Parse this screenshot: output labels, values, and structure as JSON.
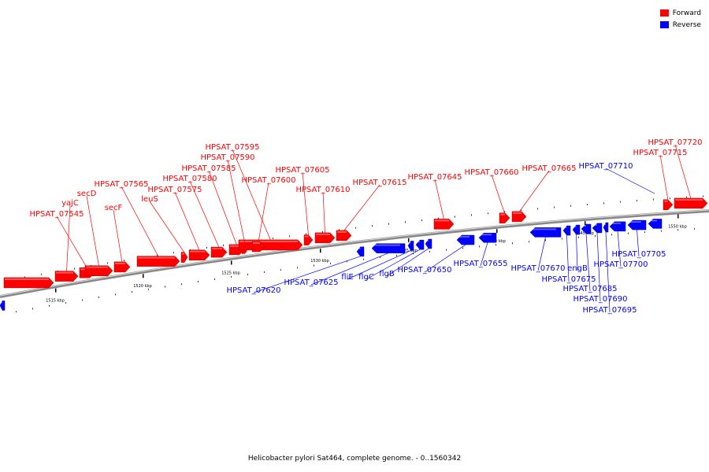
{
  "legend": {
    "forward": {
      "label": "Forward",
      "color": "#ff0000"
    },
    "reverse": {
      "label": "Reverse",
      "color": "#0000ff"
    }
  },
  "caption": "Helicobacter pylori Sat464, complete genome. - 0..1560342",
  "axis_ticks": [
    "1515 kbp",
    "1520 kbp",
    "1525 kbp",
    "1530 kbp",
    "1535 kbp",
    "1540 kbp",
    "1545 kbp",
    "1550 kbp"
  ],
  "genes_forward": [
    {
      "name": ""
    },
    {
      "name": "yajC"
    },
    {
      "name": "HPSAT_07545"
    },
    {
      "name": "secD"
    },
    {
      "name": "secF"
    },
    {
      "name": "HPSAT_07565"
    },
    {
      "name": "leuS"
    },
    {
      "name": "HPSAT_07575"
    },
    {
      "name": "HPSAT_07580"
    },
    {
      "name": "HPSAT_07585"
    },
    {
      "name": "HPSAT_07590"
    },
    {
      "name": "HPSAT_07595"
    },
    {
      "name": "HPSAT_07600"
    },
    {
      "name": "HPSAT_07605"
    },
    {
      "name": "HPSAT_07610"
    },
    {
      "name": "HPSAT_07615"
    },
    {
      "name": "HPSAT_07645"
    },
    {
      "name": "HPSAT_07660"
    },
    {
      "name": "HPSAT_07665"
    },
    {
      "name": "HPSAT_07715"
    },
    {
      "name": "HPSAT_07720"
    }
  ],
  "genes_reverse": [
    {
      "name": ""
    },
    {
      "name": "HPSAT_07620"
    },
    {
      "name": "HPSAT_07625"
    },
    {
      "name": "fliE"
    },
    {
      "name": "flgC"
    },
    {
      "name": "flgB"
    },
    {
      "name": "HPSAT_07650"
    },
    {
      "name": "HPSAT_07655"
    },
    {
      "name": "HPSAT_07670"
    },
    {
      "name": "HPSAT_07675"
    },
    {
      "name": "engB"
    },
    {
      "name": "HPSAT_07685"
    },
    {
      "name": "HPSAT_07690"
    },
    {
      "name": "HPSAT_07695"
    },
    {
      "name": "HPSAT_07700"
    },
    {
      "name": "HPSAT_07705"
    },
    {
      "name": "HPSAT_07710"
    }
  ]
}
